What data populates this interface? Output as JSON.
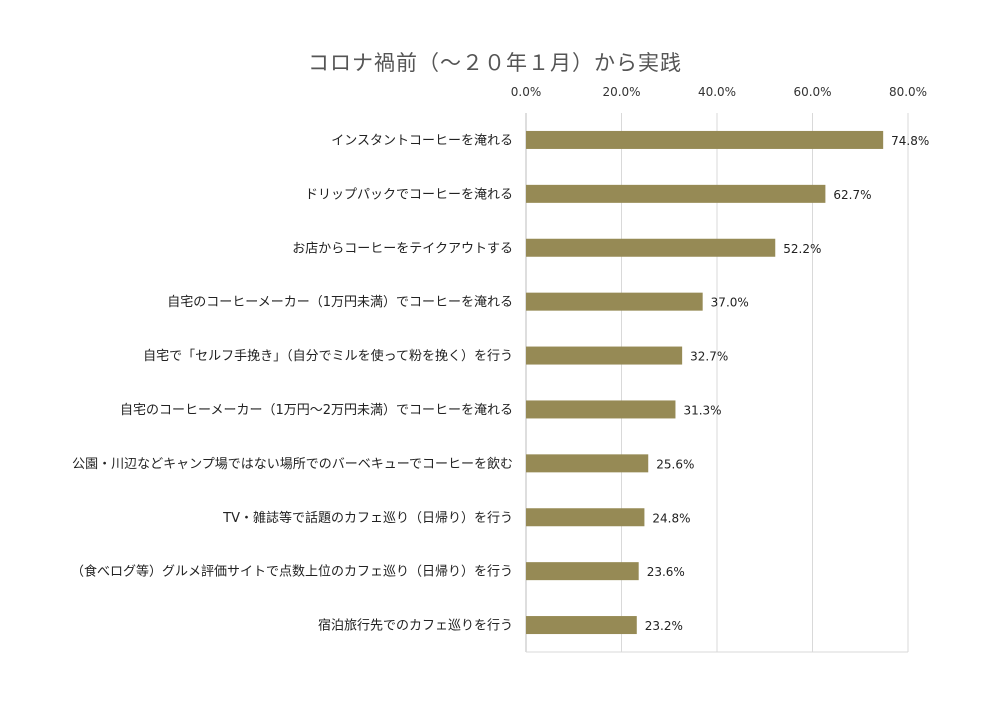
{
  "chart_data": {
    "type": "bar",
    "orientation": "horizontal",
    "title": "コロナ禍前（～２０年１月）から実践",
    "xlabel": "",
    "ylabel": "",
    "xlim": [
      0,
      80
    ],
    "x_ticks": [
      "0.0%",
      "20.0%",
      "40.0%",
      "60.0%",
      "80.0%"
    ],
    "x_tick_values": [
      0,
      20,
      40,
      60,
      80
    ],
    "grid": "vertical",
    "bar_color": "#968a55",
    "categories": [
      "インスタントコーヒーを淹れる",
      "ドリップパックでコーヒーを淹れる",
      "お店からコーヒーをテイクアウトする",
      "自宅のコーヒーメーカー（1万円未満）でコーヒーを淹れる",
      "自宅で「セルフ手挽き」（自分でミルを使って粉を挽く）を行う",
      "自宅のコーヒーメーカー（1万円～2万円未満）でコーヒーを淹れる",
      "公園・川辺などキャンプ場ではない場所でのバーベキューでコーヒーを飲む",
      "TV・雑誌等で話題のカフェ巡り（日帰り）を行う",
      "（食べログ等）グルメ評価サイトで点数上位のカフェ巡り（日帰り）を行う",
      "宿泊旅行先でのカフェ巡りを行う"
    ],
    "values": [
      74.8,
      62.7,
      52.2,
      37.0,
      32.7,
      31.3,
      25.6,
      24.8,
      23.6,
      23.2
    ],
    "data_labels": [
      "74.8%",
      "62.7%",
      "52.2%",
      "37.0%",
      "32.7%",
      "31.3%",
      "25.6%",
      "24.8%",
      "23.6%",
      "23.2%"
    ]
  }
}
